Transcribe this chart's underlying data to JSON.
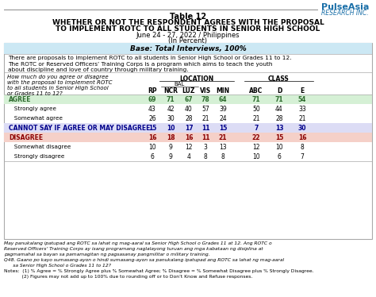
{
  "title_line1": "Table 12",
  "title_line2": "WHETHER OR NOT THE RESPONDENT AGREES WITH THE PROPOSAL",
  "title_line3": "TO IMPLEMENT ROTC TO ALL STUDENTS IN SENIOR HIGH SCHOOL",
  "title_line4": "June 24 - 27, 2022 / Philippines",
  "title_line5": "(In Percent)",
  "base_text": "Base: Total Interviews, 100%",
  "intro_text1": "There are proposals to implement ROTC to all students in Senior High School or Grades 11 to 12.",
  "intro_text2": "The ROTC or Reserved Officers’ Training Corps is a program which aims to teach the youth",
  "intro_text3": "about discipline and love of country through military training.",
  "question_text1": "How much do you agree or disagree",
  "question_text2": "with the proposal to implement ROTC",
  "question_text3": "to all students in Senior High School",
  "question_text4": "or Grades 11 to 12?",
  "col_headers_display": [
    "RP",
    "NCR",
    "LUZ",
    "VIS",
    "MIN",
    "ABC",
    "D",
    "E"
  ],
  "location_header": "LOCATION",
  "class_header": "CLASS",
  "bal_header": "BAL",
  "rows": [
    {
      "label": "AGREE",
      "values": [
        69,
        71,
        67,
        78,
        64,
        71,
        71,
        54
      ],
      "bold": true,
      "bg": "#d5f0d5",
      "fg": "#2d6a2d"
    },
    {
      "label": "   Strongly agree",
      "values": [
        43,
        42,
        40,
        57,
        39,
        50,
        44,
        33
      ],
      "bold": false,
      "bg": "#ffffff",
      "fg": "#000000"
    },
    {
      "label": "   Somewhat agree",
      "values": [
        26,
        30,
        28,
        21,
        24,
        21,
        28,
        21
      ],
      "bold": false,
      "bg": "#ffffff",
      "fg": "#000000"
    },
    {
      "label": "CANNOT SAY IF AGREE OR MAY DISAGREE",
      "values": [
        15,
        10,
        17,
        11,
        15,
        7,
        13,
        30
      ],
      "bold": true,
      "bg": "#dcdcf5",
      "fg": "#00008b"
    },
    {
      "label": "DISAGREE",
      "values": [
        16,
        18,
        16,
        11,
        21,
        22,
        15,
        16
      ],
      "bold": true,
      "bg": "#f5d0c8",
      "fg": "#8b0000"
    },
    {
      "label": "   Somewhat disagree",
      "values": [
        10,
        9,
        12,
        3,
        13,
        12,
        10,
        8
      ],
      "bold": false,
      "bg": "#ffffff",
      "fg": "#000000"
    },
    {
      "label": "   Strongly disagree",
      "values": [
        6,
        9,
        4,
        8,
        8,
        10,
        6,
        7
      ],
      "bold": false,
      "bg": "#ffffff",
      "fg": "#000000"
    }
  ],
  "footer_lines": [
    "May panukalang ipatupad ang ROTC sa lahat ng mag-aaral sa Senior High School o Grades 11 at 12. Ang ROTC o",
    "Reserved Officers’ Training Corps ay isang programang naglalayong turuan ang mga kabataan ng disiplina at",
    "pagmamahal sa bayan sa pamamagitan ng pagsasanay pangmilitar o military training.",
    "Q48. Gaano po kayo sumasang-ayon o hindi sumasang-ayon sa panukalang ipatupad ang ROTC sa lahat ng mag-aaral",
    "      sa Senior High School o Grades 11 to 12?",
    "Notes:  (1) % Agree = % Strongly Agree plus % Somewhat Agree; % Disagree = % Somewhat Disagree plus % Strongly Disagree.",
    "            (2) Figures may not add up to 100% due to rounding off or to Don’t Know and Refuse responses."
  ],
  "footer_italic": [
    true,
    true,
    true,
    true,
    true,
    false,
    false
  ],
  "logo_text1": "PulseAsia",
  "logo_text2": "RESEARCH INC.",
  "bg_color": "#ffffff",
  "header_bg": "#cce8f4",
  "agree_bg": "#d5f0d5",
  "disagree_bg": "#f5d0c8",
  "cannot_bg": "#dcdcf5"
}
